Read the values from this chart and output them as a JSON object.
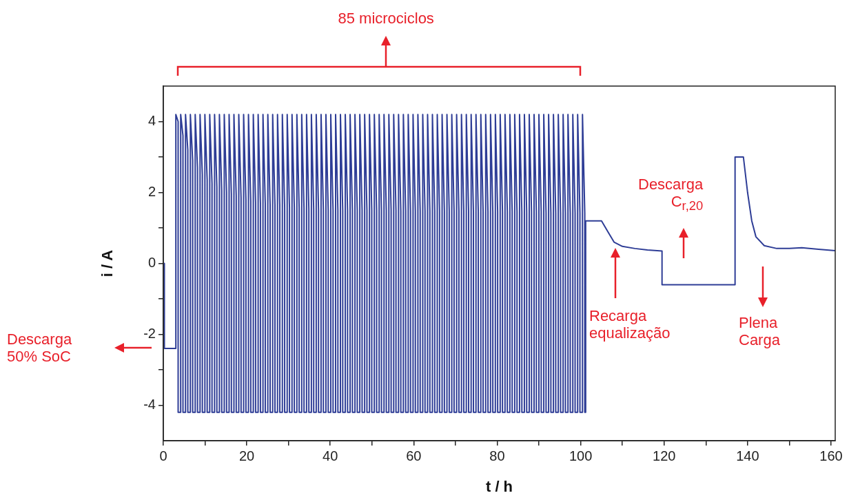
{
  "chart_data": {
    "type": "line",
    "xlabel": "t / h",
    "ylabel": "i / A",
    "xlim": [
      0,
      161
    ],
    "ylim": [
      -5,
      5
    ],
    "xticks": [
      0,
      {
        "value": 10,
        "label": null
      },
      20,
      {
        "value": 30,
        "label": null
      },
      40,
      {
        "value": 50,
        "label": null
      },
      60,
      {
        "value": 70,
        "label": null
      },
      80,
      {
        "value": 90,
        "label": null
      },
      100,
      {
        "value": 110,
        "label": null
      },
      120,
      {
        "value": 130,
        "label": null
      },
      140,
      {
        "value": 150,
        "label": null
      },
      160
    ],
    "yticks": [
      -4,
      {
        "value": -3,
        "label": null
      },
      -2,
      {
        "value": -1,
        "label": null
      },
      0,
      {
        "value": 1,
        "label": null
      },
      2,
      {
        "value": 3,
        "label": null
      },
      4
    ],
    "series": [
      {
        "color": "#2e3d96",
        "x": [
          0.25,
          0.25,
          3,
          3,
          3.55,
          3.55,
          4.16,
          4.16,
          4.71,
          4.71,
          5.32,
          5.32,
          5.87,
          5.87,
          6.48,
          6.48,
          7.03,
          7.03,
          7.64,
          7.64,
          8.19,
          8.19,
          8.8,
          8.8,
          9.35,
          9.35,
          9.96,
          9.96,
          10.51,
          10.51,
          11.12,
          11.12,
          11.67,
          11.67,
          12.28,
          12.28,
          12.83,
          12.83,
          13.44,
          13.44,
          13.99,
          13.99,
          14.6,
          14.6,
          15.15,
          15.15,
          15.76,
          15.76,
          16.31,
          16.31,
          16.92,
          16.92,
          17.47,
          17.47,
          18.08,
          18.08,
          18.63,
          18.63,
          19.24,
          19.24,
          19.79,
          19.79,
          20.4,
          20.4,
          20.95,
          20.95,
          21.56,
          21.56,
          22.11,
          22.11,
          22.72,
          22.72,
          23.27,
          23.27,
          23.88,
          23.88,
          24.43,
          24.43,
          25.04,
          25.04,
          25.59,
          25.59,
          26.2,
          26.2,
          26.75,
          26.75,
          27.36,
          27.36,
          27.91,
          27.91,
          28.52,
          28.52,
          29.07,
          29.07,
          29.68,
          29.68,
          30.23,
          30.23,
          30.84,
          30.84,
          31.39,
          31.39,
          32,
          32,
          32.55,
          32.55,
          33.16,
          33.16,
          33.71,
          33.71,
          34.32,
          34.32,
          34.87,
          34.87,
          35.48,
          35.48,
          36.03,
          36.03,
          36.64,
          36.64,
          37.19,
          37.19,
          37.8,
          37.8,
          38.35,
          38.35,
          38.96,
          38.96,
          39.51,
          39.51,
          40.12,
          40.12,
          40.67,
          40.67,
          41.28,
          41.28,
          41.83,
          41.83,
          42.44,
          42.44,
          42.99,
          42.99,
          43.6,
          43.6,
          44.15,
          44.15,
          44.76,
          44.76,
          45.31,
          45.31,
          45.92,
          45.92,
          46.47,
          46.47,
          47.08,
          47.08,
          47.63,
          47.63,
          48.24,
          48.24,
          48.79,
          48.79,
          49.4,
          49.4,
          49.95,
          49.95,
          50.56,
          50.56,
          51.11,
          51.11,
          51.72,
          51.72,
          52.27,
          52.27,
          52.88,
          52.88,
          53.43,
          53.43,
          54.04,
          54.04,
          54.59,
          54.59,
          55.2,
          55.2,
          55.75,
          55.75,
          56.36,
          56.36,
          56.91,
          56.91,
          57.52,
          57.52,
          58.07,
          58.07,
          58.68,
          58.68,
          59.23,
          59.23,
          59.84,
          59.84,
          60.39,
          60.39,
          61,
          61,
          61.55,
          61.55,
          62.16,
          62.16,
          62.71,
          62.71,
          63.32,
          63.32,
          63.87,
          63.87,
          64.48,
          64.48,
          65.03,
          65.03,
          65.64,
          65.64,
          66.19,
          66.19,
          66.8,
          66.8,
          67.35,
          67.35,
          67.96,
          67.96,
          68.51,
          68.51,
          69.12,
          69.12,
          69.67,
          69.67,
          70.28,
          70.28,
          70.83,
          70.83,
          71.44,
          71.44,
          71.99,
          71.99,
          72.6,
          72.6,
          73.15,
          73.15,
          73.76,
          73.76,
          74.31,
          74.31,
          74.92,
          74.92,
          75.47,
          75.47,
          76.08,
          76.08,
          76.63,
          76.63,
          77.24,
          77.24,
          77.79,
          77.79,
          78.4,
          78.4,
          78.95,
          78.95,
          79.56,
          79.56,
          80.11,
          80.11,
          80.72,
          80.72,
          81.27,
          81.27,
          81.88,
          81.88,
          82.43,
          82.43,
          83.04,
          83.04,
          83.59,
          83.59,
          84.2,
          84.2,
          84.75,
          84.75,
          85.36,
          85.36,
          85.91,
          85.91,
          86.52,
          86.52,
          87.07,
          87.07,
          87.68,
          87.68,
          88.23,
          88.23,
          88.84,
          88.84,
          89.39,
          89.39,
          90,
          90,
          90.55,
          90.55,
          91.16,
          91.16,
          91.71,
          91.71,
          92.32,
          92.32,
          92.87,
          92.87,
          93.48,
          93.48,
          94.03,
          94.03,
          94.64,
          94.64,
          95.19,
          95.19,
          95.8,
          95.8,
          96.35,
          96.35,
          96.96,
          96.96,
          97.51,
          97.51,
          98.12,
          98.12,
          98.67,
          98.67,
          99.28,
          99.28,
          99.83,
          99.83,
          100.44,
          100.44,
          100.99,
          100.99,
          101.2,
          101.2,
          105,
          106.5,
          108,
          110,
          113,
          116,
          119.5,
          119.5,
          137,
          137,
          139,
          140,
          141,
          142,
          144,
          147,
          150,
          153,
          157,
          161
        ],
        "values": [
          0,
          -2.4,
          -2.4,
          4.2,
          4.0,
          -4.2,
          -4.2,
          4.2,
          3.6,
          -4.2,
          -4.2,
          4.2,
          3.2,
          -4.2,
          -4.2,
          4.2,
          2.9,
          -4.2,
          -4.2,
          4.2,
          2.7,
          -4.2,
          -4.2,
          4.2,
          2.5,
          -4.2,
          -4.2,
          4.2,
          2.35,
          -4.2,
          -4.2,
          4.2,
          2.25,
          -4.2,
          -4.2,
          4.2,
          2.15,
          -4.2,
          -4.2,
          4.2,
          2.05,
          -4.2,
          -4.2,
          4.2,
          2.0,
          -4.2,
          -4.2,
          4.2,
          1.95,
          -4.2,
          -4.2,
          4.2,
          1.9,
          -4.2,
          -4.2,
          4.2,
          1.85,
          -4.2,
          -4.2,
          4.2,
          1.8,
          -4.2,
          -4.2,
          4.2,
          1.75,
          -4.2,
          -4.2,
          4.2,
          1.72,
          -4.2,
          -4.2,
          4.2,
          1.7,
          -4.2,
          -4.2,
          4.2,
          1.68,
          -4.2,
          -4.2,
          4.2,
          1.66,
          -4.2,
          -4.2,
          4.2,
          1.64,
          -4.2,
          -4.2,
          4.2,
          1.62,
          -4.2,
          -4.2,
          4.2,
          1.6,
          -4.2,
          -4.2,
          4.2,
          1.58,
          -4.2,
          -4.2,
          4.2,
          1.57,
          -4.2,
          -4.2,
          4.2,
          1.56,
          -4.2,
          -4.2,
          4.2,
          1.55,
          -4.2,
          -4.2,
          4.2,
          1.54,
          -4.2,
          -4.2,
          4.2,
          1.53,
          -4.2,
          -4.2,
          4.2,
          1.52,
          -4.2,
          -4.2,
          4.2,
          1.51,
          -4.2,
          -4.2,
          4.2,
          1.5,
          -4.2,
          -4.2,
          4.2,
          1.5,
          -4.2,
          -4.2,
          4.2,
          1.5,
          -4.2,
          -4.2,
          4.2,
          1.5,
          -4.2,
          -4.2,
          4.2,
          1.5,
          -4.2,
          -4.2,
          4.2,
          1.5,
          -4.2,
          -4.2,
          4.2,
          1.5,
          -4.2,
          -4.2,
          4.2,
          1.5,
          -4.2,
          -4.2,
          4.2,
          1.5,
          -4.2,
          -4.2,
          4.2,
          1.5,
          -4.2,
          -4.2,
          4.2,
          1.5,
          -4.2,
          -4.2,
          4.2,
          1.5,
          -4.2,
          -4.2,
          4.2,
          1.5,
          -4.2,
          -4.2,
          4.2,
          1.5,
          -4.2,
          -4.2,
          4.2,
          1.5,
          -4.2,
          -4.2,
          4.2,
          1.48,
          -4.2,
          -4.2,
          4.2,
          1.48,
          -4.2,
          -4.2,
          4.2,
          1.48,
          -4.2,
          -4.2,
          4.2,
          1.48,
          -4.2,
          -4.2,
          4.2,
          1.48,
          -4.2,
          -4.2,
          4.2,
          1.48,
          -4.2,
          -4.2,
          4.2,
          1.48,
          -4.2,
          -4.2,
          4.2,
          1.48,
          -4.2,
          -4.2,
          4.2,
          1.48,
          -4.2,
          -4.2,
          4.2,
          1.48,
          -4.2,
          -4.2,
          4.2,
          1.48,
          -4.2,
          -4.2,
          4.2,
          1.48,
          -4.2,
          -4.2,
          4.2,
          1.48,
          -4.2,
          -4.2,
          4.2,
          1.48,
          -4.2,
          -4.2,
          4.2,
          1.48,
          -4.2,
          -4.2,
          4.2,
          1.45,
          -4.2,
          -4.2,
          4.2,
          1.45,
          -4.2,
          -4.2,
          4.2,
          1.45,
          -4.2,
          -4.2,
          4.2,
          1.45,
          -4.2,
          -4.2,
          4.2,
          1.45,
          -4.2,
          -4.2,
          4.2,
          1.45,
          -4.2,
          -4.2,
          4.2,
          1.45,
          -4.2,
          -4.2,
          4.2,
          1.45,
          -4.2,
          -4.2,
          4.2,
          1.45,
          -4.2,
          -4.2,
          4.2,
          1.45,
          -4.2,
          -4.2,
          4.2,
          1.45,
          -4.2,
          -4.2,
          4.2,
          1.45,
          -4.2,
          -4.2,
          4.2,
          1.45,
          -4.2,
          -4.2,
          4.2,
          1.45,
          -4.2,
          -4.2,
          4.2,
          1.45,
          -4.2,
          -4.2,
          4.2,
          1.42,
          -4.2,
          -4.2,
          4.2,
          1.42,
          -4.2,
          -4.2,
          4.2,
          1.42,
          -4.2,
          -4.2,
          4.2,
          1.42,
          -4.2,
          -4.2,
          4.2,
          1.42,
          -4.2,
          -4.2,
          4.2,
          1.42,
          -4.2,
          -4.2,
          4.2,
          1.42,
          -4.2,
          -4.2,
          4.2,
          1.42,
          -4.2,
          -4.2,
          4.2,
          1.42,
          -4.2,
          -4.2,
          1.2,
          1.2,
          0.9,
          0.6,
          0.48,
          0.42,
          0.38,
          0.35,
          -0.6,
          -0.6,
          3.0,
          3.0,
          2.0,
          1.2,
          0.75,
          0.5,
          0.42,
          0.42,
          0.44,
          0.4,
          0.36
        ]
      }
    ],
    "annotations": [
      "85 microciclos",
      "Descarga\n50% SoC",
      "Recarga\nequalização",
      "Descarga\nC$_{r,20}$",
      "Plena\nCarga"
    ]
  }
}
